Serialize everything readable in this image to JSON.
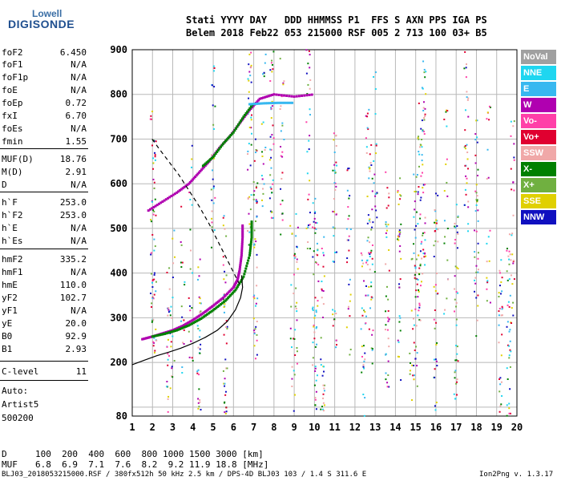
{
  "logo": {
    "brand_top": "Lowell",
    "brand_main": "DIGISONDE"
  },
  "header": {
    "line1": "Stati YYYY DAY   DDD HHMMSS P1  FFS S AXN PPS IGA PS",
    "line2": "Belem 2018 Feb22 053 215000 RSF 005 2 713 100 03+ B5"
  },
  "params": [
    {
      "name": "foF2",
      "value": "6.450"
    },
    {
      "name": "foF1",
      "value": "N/A"
    },
    {
      "name": "foF1p",
      "value": "N/A"
    },
    {
      "name": "foE",
      "value": "N/A"
    },
    {
      "name": "foEp",
      "value": "0.72"
    },
    {
      "name": "fxI",
      "value": "6.70"
    },
    {
      "name": "foEs",
      "value": "N/A"
    },
    {
      "name": "fmin",
      "value": "1.55"
    },
    {
      "name": "MUF(D)",
      "value": "18.76"
    },
    {
      "name": "M(D)",
      "value": "2.91"
    },
    {
      "name": "D",
      "value": "N/A"
    },
    {
      "name": "h`F",
      "value": "253.0"
    },
    {
      "name": "h`F2",
      "value": "253.0"
    },
    {
      "name": "h`E",
      "value": "N/A"
    },
    {
      "name": "h`Es",
      "value": "N/A"
    },
    {
      "name": "hmF2",
      "value": "335.2"
    },
    {
      "name": "hmF1",
      "value": "N/A"
    },
    {
      "name": "hmE",
      "value": "110.0"
    },
    {
      "name": "yF2",
      "value": "102.7"
    },
    {
      "name": "yF1",
      "value": "N/A"
    },
    {
      "name": "yE",
      "value": "20.0"
    },
    {
      "name": "B0",
      "value": "92.9"
    },
    {
      "name": "B1",
      "value": "2.93"
    },
    {
      "name": "C-level",
      "value": "11"
    }
  ],
  "autoscaling": {
    "line1": "Auto:",
    "line2": "Artist5",
    "line3": "500200"
  },
  "footer": {
    "d_label": "D",
    "d_values": "100  200  400  600  800 1000 1500 3000 [km]",
    "muf_label": "MUF",
    "muf_values": "6.8  6.9  7.1  7.6  8.2  9.2 11.9 18.8 [MHz]",
    "file_info": "BLJ03_2018053215000.RSF / 380fx512h 50 kHz 2.5 km / DPS-4D BLJ03 103 / 1.4 S 311.6 E",
    "version": "Ion2Png v. 1.3.17"
  },
  "legend": [
    {
      "label": "NoVal",
      "color": "#a0a0a0"
    },
    {
      "label": "NNE",
      "color": "#1fd6f0"
    },
    {
      "label": "E",
      "color": "#38b8f0"
    },
    {
      "label": "W",
      "color": "#b000b0"
    },
    {
      "label": "Vo-",
      "color": "#ff3fa8"
    },
    {
      "label": "Vo+",
      "color": "#e00030"
    },
    {
      "label": "SSW",
      "color": "#f0a8a8"
    },
    {
      "label": "X-",
      "color": "#008000"
    },
    {
      "label": "X+",
      "color": "#70b040"
    },
    {
      "label": "SSE",
      "color": "#e0d000"
    },
    {
      "label": "NNW",
      "color": "#1010c0"
    }
  ],
  "chart_data": {
    "type": "scatter",
    "xlim": [
      1,
      20
    ],
    "ylim": [
      80,
      900
    ],
    "x_ticks": [
      1,
      2,
      3,
      4,
      5,
      6,
      7,
      8,
      9,
      10,
      11,
      12,
      13,
      14,
      15,
      16,
      17,
      18,
      19,
      20
    ],
    "y_ticks": [
      100,
      200,
      300,
      400,
      500,
      600,
      700,
      800,
      900
    ],
    "y_tick_labels_shown": [
      80,
      200,
      300,
      400,
      500,
      600,
      700,
      800,
      900
    ],
    "grid": true,
    "legend_position": "right",
    "series": [
      {
        "name": "O-trace",
        "color": "#b000b0",
        "points": [
          [
            1.5,
            252
          ],
          [
            2.0,
            258
          ],
          [
            2.5,
            265
          ],
          [
            3.0,
            272
          ],
          [
            3.5,
            282
          ],
          [
            4.0,
            295
          ],
          [
            4.5,
            310
          ],
          [
            5.0,
            327
          ],
          [
            5.5,
            345
          ],
          [
            6.0,
            368
          ],
          [
            6.2,
            385
          ],
          [
            6.3,
            405
          ],
          [
            6.4,
            440
          ],
          [
            6.45,
            480
          ],
          [
            6.45,
            510
          ]
        ]
      },
      {
        "name": "X-trace",
        "color": "#008000",
        "points": [
          [
            2.0,
            258
          ],
          [
            2.6,
            264
          ],
          [
            3.2,
            272
          ],
          [
            3.8,
            283
          ],
          [
            4.4,
            298
          ],
          [
            5.0,
            317
          ],
          [
            5.6,
            338
          ],
          [
            6.1,
            362
          ],
          [
            6.5,
            392
          ],
          [
            6.8,
            440
          ],
          [
            6.9,
            480
          ],
          [
            6.9,
            520
          ]
        ]
      },
      {
        "name": "Upper O-trace",
        "color": "#b000b0",
        "points": [
          [
            1.8,
            540
          ],
          [
            2.5,
            560
          ],
          [
            3.2,
            580
          ],
          [
            3.8,
            600
          ],
          [
            4.3,
            625
          ],
          [
            4.8,
            650
          ],
          [
            5.3,
            680
          ],
          [
            5.8,
            705
          ],
          [
            6.3,
            735
          ],
          [
            6.8,
            765
          ],
          [
            7.3,
            790
          ],
          [
            8.0,
            800
          ],
          [
            9.0,
            795
          ],
          [
            10.0,
            800
          ]
        ]
      },
      {
        "name": "Upper X-trace",
        "color": "#008000",
        "points": [
          [
            4.5,
            640
          ],
          [
            5.0,
            660
          ],
          [
            5.5,
            690
          ],
          [
            6.0,
            715
          ],
          [
            6.5,
            750
          ],
          [
            7.0,
            780
          ]
        ]
      },
      {
        "name": "Es band",
        "color": "#38b8f0",
        "points": [
          [
            6.8,
            778
          ],
          [
            7.5,
            780
          ],
          [
            8.2,
            781
          ],
          [
            9.0,
            781
          ]
        ]
      },
      {
        "name": "Profile",
        "color": "#000000",
        "points": [
          [
            1.0,
            195
          ],
          [
            1.6,
            205
          ],
          [
            2.2,
            215
          ],
          [
            2.8,
            223
          ],
          [
            3.4,
            232
          ],
          [
            4.0,
            243
          ],
          [
            4.6,
            256
          ],
          [
            5.2,
            272
          ],
          [
            5.7,
            292
          ],
          [
            6.1,
            318
          ],
          [
            6.35,
            345
          ],
          [
            6.45,
            368
          ],
          [
            6.4,
            395
          ]
        ]
      },
      {
        "name": "Extrapolated profile",
        "color": "#000000",
        "points": [
          [
            6.3,
            375
          ],
          [
            5.8,
            420
          ],
          [
            5.3,
            465
          ],
          [
            4.8,
            510
          ],
          [
            4.3,
            550
          ],
          [
            3.8,
            585
          ],
          [
            3.3,
            620
          ],
          [
            2.8,
            650
          ],
          [
            2.3,
            680
          ],
          [
            1.9,
            705
          ]
        ]
      }
    ]
  }
}
